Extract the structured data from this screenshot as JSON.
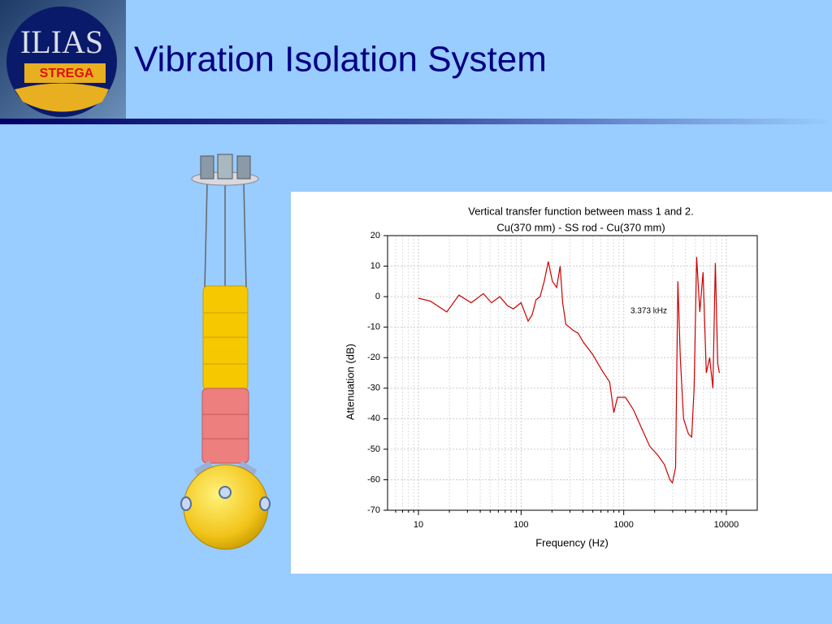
{
  "slide": {
    "title": "Vibration Isolation System"
  },
  "logo": {
    "top": "ILIAS",
    "bottom": "STREGA"
  },
  "chart_data": {
    "type": "line",
    "title": [
      "Vertical transfer function between mass 1 and 2.",
      "Cu(370 mm) - SS rod - Cu(370 mm)"
    ],
    "x_label": "Frequency (Hz)",
    "y_label": "Attenuation (dB)",
    "annotation": "3.373 kHz",
    "x_scale": "log",
    "xlim": [
      5,
      20000
    ],
    "xticks": [
      10,
      100,
      1000,
      10000
    ],
    "ylim": [
      -70,
      20
    ],
    "yticks": [
      -70,
      -60,
      -50,
      -40,
      -30,
      -20,
      -10,
      0,
      10,
      20
    ],
    "grid": true,
    "minor_grid": true,
    "series": [
      {
        "color": "#cc0000",
        "x": [
          10,
          13.1,
          18.9,
          24.8,
          32.6,
          42.9,
          51.5,
          62,
          74,
          84,
          100,
          117,
          128,
          140,
          153,
          168,
          184,
          202,
          222,
          240,
          254,
          273,
          320,
          360,
          405,
          500,
          610,
          730,
          800,
          870,
          1040,
          1240,
          1490,
          1790,
          2150,
          2490,
          2820,
          2980,
          3200,
          3370,
          3560,
          3830,
          4270,
          4590,
          4850,
          5130,
          5510,
          5930,
          6380,
          6870,
          7390,
          7810,
          8250,
          8550
        ],
        "values": [
          -0.5,
          -1.5,
          -5,
          0.5,
          -2,
          1,
          -2,
          0,
          -3,
          -4,
          -2,
          -8,
          -6,
          -1,
          0,
          5,
          11.5,
          5,
          3,
          10,
          -2,
          -9,
          -11,
          -12,
          -15,
          -19,
          -24,
          -28,
          -38,
          -33,
          -33,
          -37,
          -43,
          -49,
          -52,
          -55,
          -60,
          -61,
          -56,
          5,
          -20,
          -40,
          -45,
          -46,
          -30,
          13,
          -5,
          8,
          -25,
          -20,
          -30,
          11,
          -22,
          -25
        ]
      }
    ]
  }
}
